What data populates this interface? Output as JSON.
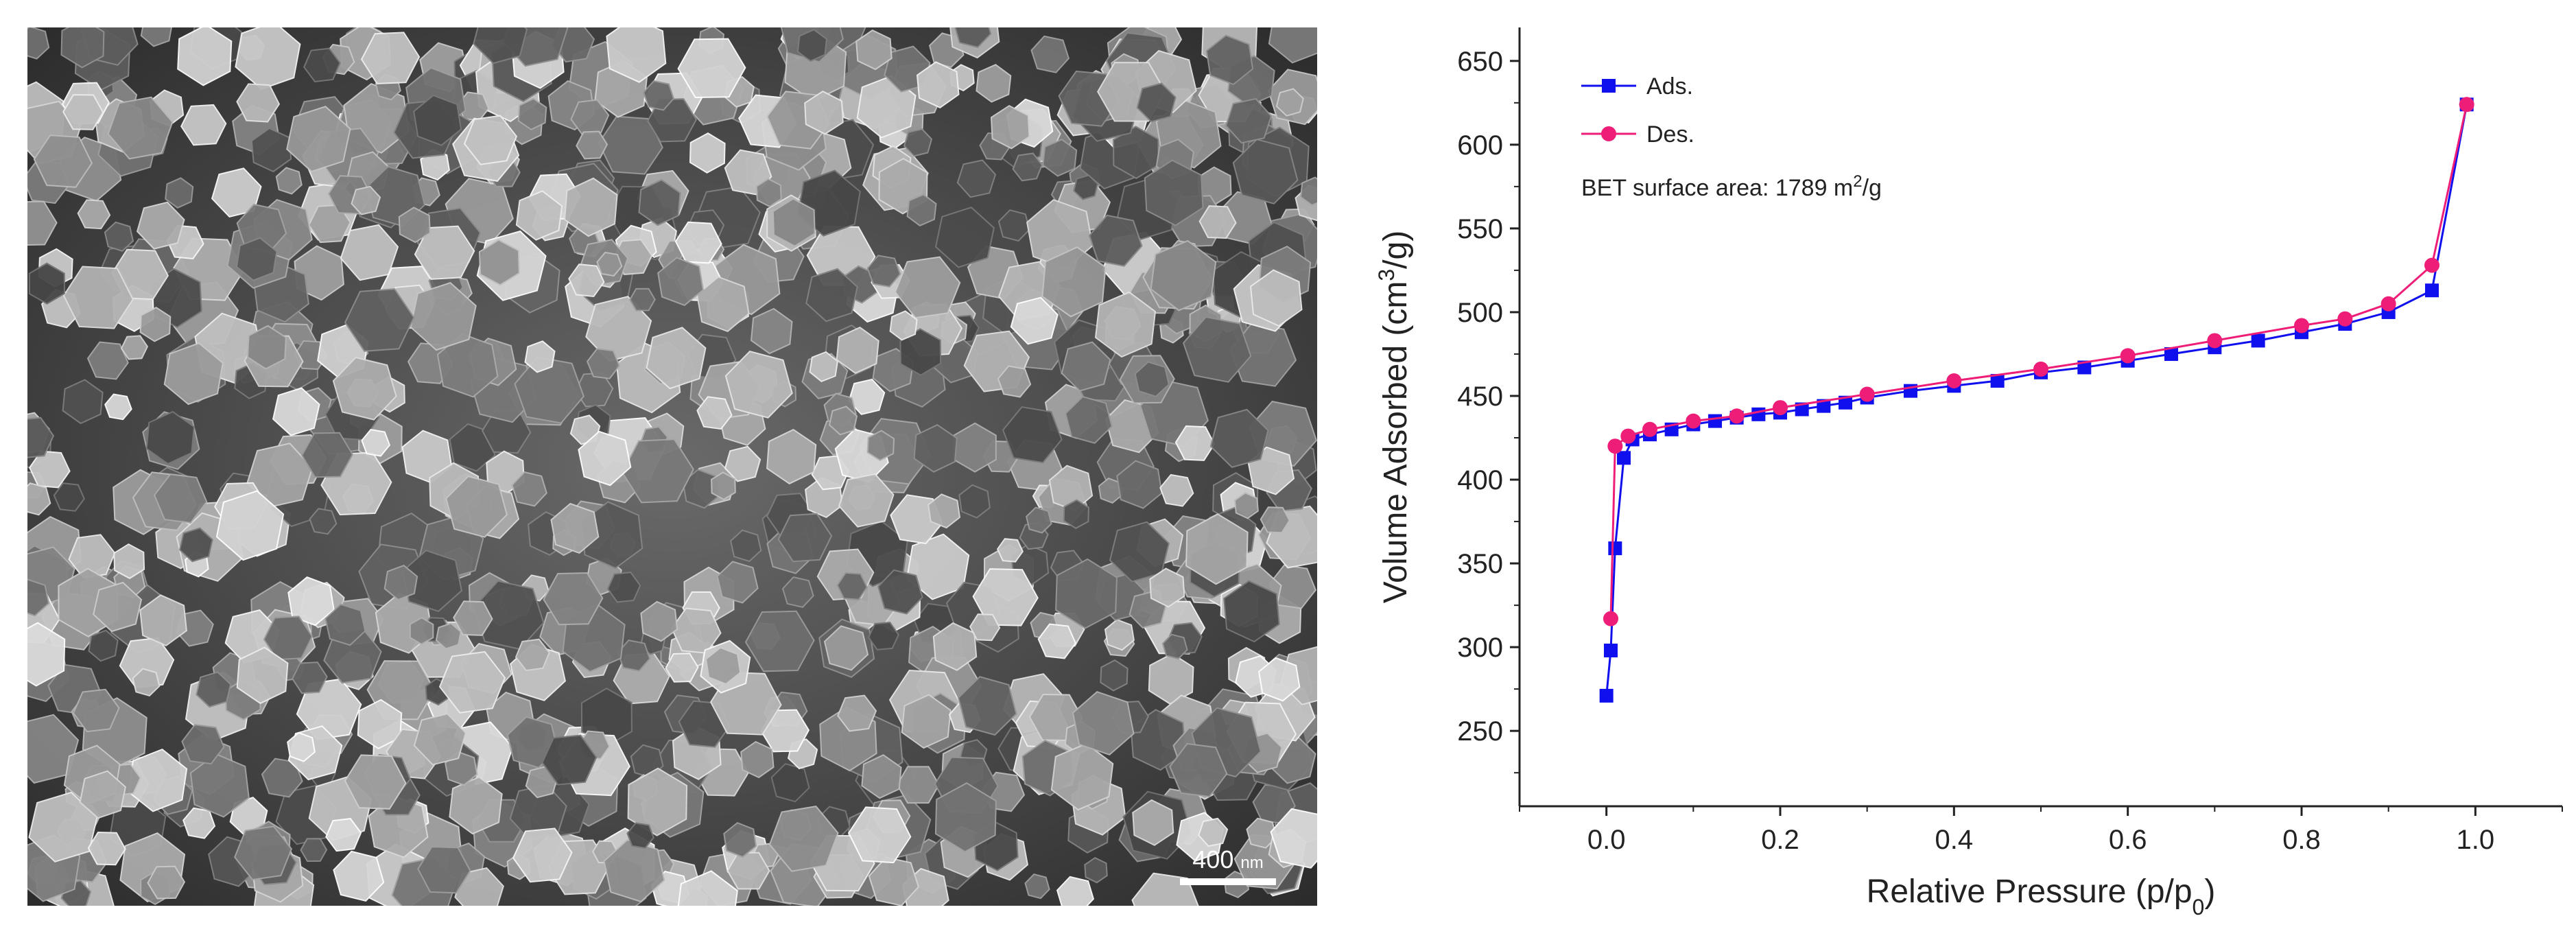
{
  "sem_image": {
    "scale_bar": {
      "value": "400",
      "unit": "nm"
    }
  },
  "chart_data": {
    "type": "line",
    "xlabel": {
      "text": "Relative Pressure (p/p",
      "sub": "0",
      "after": ")"
    },
    "ylabel": {
      "text": "Volume Adsorbed (cm",
      "sup": "3",
      "after": "/g)"
    },
    "xlim": [
      -0.1,
      1.1
    ],
    "ylim": [
      205,
      670
    ],
    "x_ticks": [
      0.0,
      0.2,
      0.4,
      0.6,
      0.8,
      1.0
    ],
    "x_tick_labels": [
      "0.0",
      "0.2",
      "0.4",
      "0.6",
      "0.8",
      "1.0"
    ],
    "y_ticks": [
      250,
      300,
      350,
      400,
      450,
      500,
      550,
      600,
      650
    ],
    "y_tick_labels": [
      "250",
      "300",
      "350",
      "400",
      "450",
      "500",
      "550",
      "600",
      "650"
    ],
    "grid": false,
    "legend_position": "top-left",
    "annotation": {
      "text": "BET surface area: 1789 m",
      "sup": "2",
      "after": "/g"
    },
    "series": [
      {
        "name": "Ads.",
        "color": "#1010ee",
        "marker": "square",
        "x": [
          0.0,
          0.005,
          0.01,
          0.02,
          0.03,
          0.05,
          0.075,
          0.1,
          0.125,
          0.15,
          0.175,
          0.2,
          0.225,
          0.25,
          0.275,
          0.3,
          0.35,
          0.4,
          0.45,
          0.5,
          0.55,
          0.6,
          0.65,
          0.7,
          0.75,
          0.8,
          0.85,
          0.9,
          0.95,
          0.99
        ],
        "y": [
          271,
          298,
          359,
          413,
          424,
          427,
          430,
          433,
          435,
          437,
          439,
          440,
          442,
          444,
          446,
          449,
          453,
          456,
          459,
          464,
          467,
          471,
          475,
          479,
          483,
          488,
          493,
          500,
          513,
          624
        ]
      },
      {
        "name": "Des.",
        "color": "#ee1e78",
        "marker": "circle",
        "x": [
          0.99,
          0.95,
          0.9,
          0.85,
          0.8,
          0.7,
          0.6,
          0.5,
          0.4,
          0.3,
          0.2,
          0.15,
          0.1,
          0.05,
          0.025,
          0.01,
          0.005
        ],
        "y": [
          624,
          528,
          505,
          496,
          492,
          483,
          474,
          466,
          459,
          451,
          443,
          438,
          435,
          430,
          426,
          420,
          317
        ]
      }
    ]
  }
}
